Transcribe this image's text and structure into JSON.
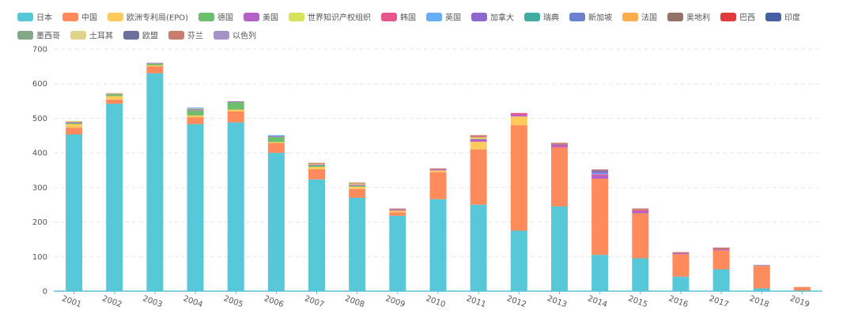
{
  "chart_data": {
    "type": "bar",
    "stacked": true,
    "ylim": [
      0,
      700
    ],
    "yticks": [
      0,
      100,
      200,
      300,
      400,
      500,
      600,
      700
    ],
    "categories": [
      "2001",
      "2002",
      "2003",
      "2004",
      "2005",
      "2006",
      "2007",
      "2008",
      "2009",
      "2010",
      "2011",
      "2012",
      "2013",
      "2014",
      "2015",
      "2016",
      "2017",
      "2018",
      "2019"
    ],
    "grid": true,
    "legend_position": "top",
    "series": [
      {
        "name": "日本",
        "color": "#56c8d8",
        "values": [
          453,
          542,
          630,
          483,
          488,
          400,
          323,
          270,
          218,
          266,
          250,
          175,
          245,
          105,
          95,
          42,
          63,
          8,
          0
        ]
      },
      {
        "name": "中国",
        "color": "#ff8a5c",
        "values": [
          20,
          12,
          20,
          20,
          32,
          28,
          30,
          25,
          10,
          78,
          160,
          305,
          170,
          220,
          130,
          65,
          55,
          65,
          12
        ]
      },
      {
        "name": "欧洲专利局(EPO)",
        "color": "#ffca5b",
        "values": [
          10,
          10,
          3,
          5,
          5,
          3,
          6,
          7,
          5,
          5,
          22,
          25,
          0,
          0,
          0,
          0,
          0,
          0,
          0
        ]
      },
      {
        "name": "德国",
        "color": "#6dbe6d",
        "values": [
          3,
          5,
          5,
          15,
          22,
          15,
          5,
          3,
          0,
          0,
          0,
          0,
          0,
          0,
          0,
          0,
          0,
          0,
          0
        ]
      },
      {
        "name": "美国",
        "color": "#b55fc9",
        "values": [
          3,
          2,
          2,
          3,
          2,
          2,
          2,
          3,
          3,
          3,
          8,
          5,
          3,
          10,
          6,
          3,
          3,
          0,
          0
        ]
      },
      {
        "name": "世界知识产权组织",
        "color": "#d6e35a",
        "values": [
          3,
          2,
          0,
          2,
          0,
          0,
          2,
          3,
          0,
          0,
          5,
          0,
          0,
          0,
          0,
          0,
          0,
          0,
          0
        ]
      },
      {
        "name": "韩国",
        "color": "#e8558a",
        "values": [
          0,
          0,
          0,
          0,
          0,
          0,
          0,
          0,
          0,
          0,
          3,
          5,
          3,
          3,
          3,
          0,
          0,
          0,
          0
        ]
      },
      {
        "name": "英国",
        "color": "#65aef5",
        "values": [
          0,
          0,
          0,
          3,
          0,
          3,
          0,
          0,
          0,
          0,
          0,
          0,
          0,
          3,
          0,
          0,
          0,
          0,
          0
        ]
      },
      {
        "name": "加拿大",
        "color": "#8e68d0",
        "values": [
          0,
          0,
          0,
          0,
          0,
          0,
          0,
          0,
          0,
          0,
          0,
          0,
          3,
          5,
          0,
          0,
          0,
          0,
          0
        ]
      },
      {
        "name": "瑞典",
        "color": "#3fae9e",
        "values": [
          0,
          0,
          0,
          0,
          0,
          0,
          0,
          0,
          0,
          0,
          0,
          0,
          0,
          0,
          0,
          0,
          0,
          0,
          0
        ]
      },
      {
        "name": "新加坡",
        "color": "#6c82cf",
        "values": [
          0,
          0,
          0,
          0,
          0,
          0,
          0,
          0,
          0,
          0,
          0,
          0,
          0,
          0,
          0,
          0,
          0,
          0,
          0
        ]
      },
      {
        "name": "法国",
        "color": "#ffac4d",
        "values": [
          0,
          0,
          0,
          0,
          0,
          0,
          0,
          0,
          0,
          0,
          0,
          0,
          0,
          0,
          0,
          0,
          0,
          0,
          0
        ]
      },
      {
        "name": "奥地利",
        "color": "#957268",
        "values": [
          0,
          0,
          0,
          0,
          0,
          0,
          0,
          0,
          0,
          0,
          0,
          0,
          0,
          0,
          0,
          0,
          0,
          0,
          0
        ]
      },
      {
        "name": "巴西",
        "color": "#e03b3b",
        "values": [
          0,
          0,
          0,
          0,
          0,
          0,
          0,
          0,
          0,
          0,
          0,
          0,
          0,
          0,
          0,
          0,
          0,
          0,
          0
        ]
      },
      {
        "name": "印度",
        "color": "#4760a3",
        "values": [
          0,
          0,
          0,
          0,
          0,
          0,
          0,
          0,
          0,
          0,
          0,
          0,
          0,
          0,
          0,
          0,
          0,
          0,
          0
        ]
      },
      {
        "name": "墨西哥",
        "color": "#83a888",
        "values": [
          0,
          0,
          0,
          0,
          0,
          0,
          0,
          0,
          0,
          0,
          0,
          0,
          0,
          0,
          0,
          0,
          0,
          0,
          0
        ]
      },
      {
        "name": "土耳其",
        "color": "#e0d28a",
        "values": [
          0,
          0,
          0,
          0,
          0,
          0,
          0,
          0,
          0,
          0,
          0,
          0,
          0,
          0,
          0,
          0,
          0,
          0,
          0
        ]
      },
      {
        "name": "欧盟",
        "color": "#6c6f9e",
        "values": [
          0,
          0,
          0,
          0,
          0,
          0,
          0,
          0,
          0,
          0,
          0,
          0,
          0,
          3,
          0,
          0,
          0,
          0,
          0
        ]
      },
      {
        "name": "芬兰",
        "color": "#c97b70",
        "values": [
          0,
          0,
          0,
          0,
          0,
          0,
          3,
          3,
          3,
          3,
          3,
          0,
          5,
          3,
          5,
          3,
          5,
          0,
          0
        ]
      },
      {
        "name": "以色列",
        "color": "#a592c7",
        "values": [
          0,
          0,
          0,
          0,
          0,
          0,
          0,
          0,
          0,
          0,
          0,
          0,
          0,
          0,
          0,
          0,
          0,
          3,
          0
        ]
      }
    ]
  }
}
